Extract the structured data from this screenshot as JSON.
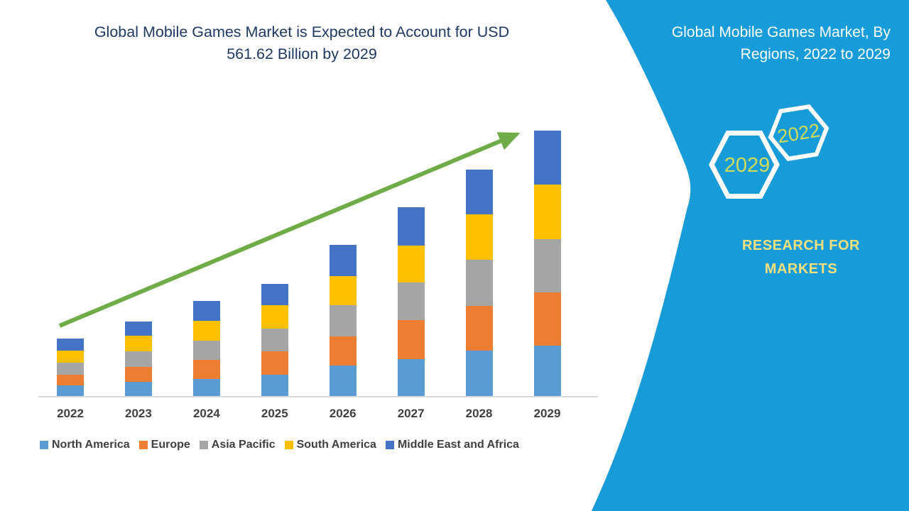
{
  "main_chart": {
    "title_line1": "Global Mobile Games Market is Expected to Account for USD",
    "title_line2": "561.62 Billion by 2029"
  },
  "chart_data": {
    "type": "bar",
    "stacked": true,
    "title": "Global Mobile Games Market is Expected to Account for USD 561.62 Billion by 2029",
    "unit": "USD Billion (estimated from bar heights; 2029 total stated as 561.62)",
    "categories": [
      "2022",
      "2023",
      "2024",
      "2025",
      "2026",
      "2027",
      "2028",
      "2029"
    ],
    "series": [
      {
        "name": "North America",
        "color": "#5B9BD5",
        "values": [
          24.0,
          31.4,
          37.4,
          46.4,
          65.9,
          79.4,
          97.3,
          107.8
        ]
      },
      {
        "name": "Europe",
        "color": "#ED7D31",
        "values": [
          22.5,
          31.4,
          40.4,
          49.4,
          61.4,
          82.4,
          94.4,
          112.3
        ]
      },
      {
        "name": "Asia Pacific",
        "color": "#A5A5A5",
        "values": [
          25.5,
          32.9,
          40.4,
          47.9,
          65.9,
          79.4,
          97.3,
          112.3
        ]
      },
      {
        "name": "South America",
        "color": "#FFC000",
        "values": [
          25.5,
          32.9,
          41.9,
          49.4,
          61.4,
          77.9,
          95.8,
          115.3
        ]
      },
      {
        "name": "Middle East and Africa",
        "color": "#4472C4",
        "values": [
          25.5,
          30.0,
          41.9,
          44.9,
          65.9,
          80.9,
          94.4,
          113.8
        ]
      }
    ],
    "totals_estimated": [
      123.0,
      158.6,
      202.0,
      238.0,
      320.5,
      400.0,
      479.2,
      561.62
    ],
    "ylim": [
      0,
      600
    ],
    "y_axis_shown": false,
    "grid": false,
    "legend_position": "bottom",
    "annotation": "straight green upward trend arrow from above the 2022 bar to the top of the 2029 bar"
  },
  "sidebar": {
    "title_line1": "Global Mobile Games Market, By",
    "title_line2": "Regions, 2022 to 2029",
    "hexagons": [
      {
        "label": "2022"
      },
      {
        "label": "2029"
      }
    ],
    "brand_line1": "RESEARCH FOR",
    "brand_line2": "MARKETS"
  },
  "colors": {
    "panel_blue": "#189CD9",
    "title_navy": "#1F3864",
    "arrow_green": "#6FAC47",
    "axis_gray": "#D8D8D8",
    "label_gray": "#3F3F3F",
    "hexagon_year_text": "#D2DB55",
    "brand_yellow": "#F2E07D",
    "north_america": "#5B9BD5",
    "europe": "#ED7D31",
    "asia_pacific": "#A5A5A5",
    "south_america": "#FFC000",
    "middle_east_africa": "#4472C4"
  }
}
